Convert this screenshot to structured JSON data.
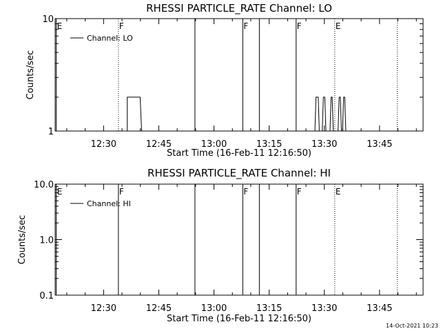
{
  "footer_timestamp": "14-Oct-2021 10:23",
  "chart_data": [
    {
      "type": "line",
      "title": "RHESSI PARTICLE_RATE Channel: LO",
      "xlabel": "Start Time (16-Feb-11 12:16:50)",
      "ylabel": "Counts/sec",
      "x_unit": "minutes after 12:16:50",
      "xlim": [
        0,
        100
      ],
      "yscale": "log",
      "ylim": [
        1,
        10
      ],
      "yticks": [
        1,
        10
      ],
      "ytick_labels": [
        "1",
        "10"
      ],
      "xticks": [
        13.17,
        28.17,
        43.17,
        58.17,
        73.17,
        88.17
      ],
      "xtick_labels": [
        "12:30",
        "12:45",
        "13:00",
        "13:15",
        "13:30",
        "13:45"
      ],
      "legend": {
        "position": "top-left",
        "entries": [
          "Channel: LO"
        ]
      },
      "markers": [
        {
          "x": 0.3,
          "label": "E",
          "style": "solid"
        },
        {
          "x": 17.2,
          "label": "F",
          "style": "dotted"
        },
        {
          "x": 38.0,
          "label": "",
          "style": "solid"
        },
        {
          "x": 51.0,
          "label": "F",
          "style": "solid"
        },
        {
          "x": 55.5,
          "label": "",
          "style": "solid"
        },
        {
          "x": 65.5,
          "label": "F",
          "style": "solid"
        },
        {
          "x": 76.0,
          "label": "E",
          "style": "dotted"
        },
        {
          "x": 93.0,
          "label": "",
          "style": "dotted"
        }
      ],
      "series": [
        {
          "name": "Channel: LO",
          "x": [
            19.6,
            19.6,
            19.9,
            23.1,
            23.5,
            23.5,
            70.6,
            70.6,
            70.9,
            71.5,
            71.8,
            71.8,
            72.6,
            72.6,
            72.9,
            73.3,
            73.6,
            73.6,
            74.7,
            74.7,
            75.0,
            75.3,
            75.6,
            75.6,
            76.9,
            76.9,
            77.2,
            77.5,
            77.8,
            77.8,
            78.1,
            78.1,
            78.4,
            78.7,
            79.0,
            79.0
          ],
          "y": [
            1,
            2,
            2,
            2,
            1,
            1,
            1,
            1,
            2,
            2,
            1,
            1,
            1,
            1,
            2,
            2,
            1,
            1,
            1,
            1,
            2,
            2,
            1,
            1,
            1,
            1,
            2,
            2,
            1,
            1,
            1,
            1,
            2,
            2,
            1,
            1
          ]
        }
      ]
    },
    {
      "type": "line",
      "title": "RHESSI PARTICLE_RATE Channel: HI",
      "xlabel": "Start Time (16-Feb-11 12:16:50)",
      "ylabel": "Counts/sec",
      "x_unit": "minutes after 12:16:50",
      "xlim": [
        0,
        100
      ],
      "yscale": "log",
      "ylim": [
        0.1,
        10
      ],
      "yticks": [
        0.1,
        1,
        10
      ],
      "ytick_labels": [
        "0.1",
        "1.0",
        "10.0"
      ],
      "xticks": [
        13.17,
        28.17,
        43.17,
        58.17,
        73.17,
        88.17
      ],
      "xtick_labels": [
        "12:30",
        "12:45",
        "13:00",
        "13:15",
        "13:30",
        "13:45"
      ],
      "legend": {
        "position": "top-left",
        "entries": [
          "Channel: HI"
        ]
      },
      "markers": [
        {
          "x": 0.3,
          "label": "E",
          "style": "solid"
        },
        {
          "x": 17.2,
          "label": "F",
          "style": "solid"
        },
        {
          "x": 38.0,
          "label": "",
          "style": "solid"
        },
        {
          "x": 51.0,
          "label": "F",
          "style": "solid"
        },
        {
          "x": 55.5,
          "label": "",
          "style": "solid"
        },
        {
          "x": 65.5,
          "label": "F",
          "style": "solid"
        },
        {
          "x": 76.0,
          "label": "E",
          "style": "dotted"
        },
        {
          "x": 93.0,
          "label": "",
          "style": "dotted"
        }
      ],
      "series": [
        {
          "name": "Channel: HI",
          "x": [],
          "y": []
        }
      ]
    }
  ]
}
